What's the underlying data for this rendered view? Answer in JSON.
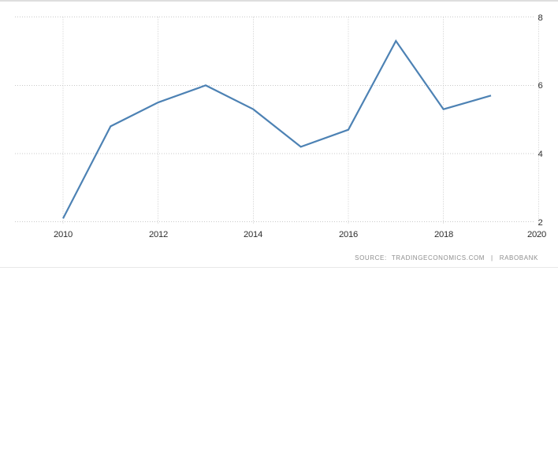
{
  "chart_data": {
    "type": "line",
    "x": [
      2010,
      2011,
      2012,
      2013,
      2014,
      2015,
      2016,
      2017,
      2018,
      2019
    ],
    "values": [
      2.1,
      4.8,
      5.5,
      6.0,
      5.3,
      4.2,
      4.7,
      7.3,
      5.3,
      5.7
    ],
    "title": "",
    "xlabel": "",
    "ylabel": "",
    "xlim": [
      2009,
      2020
    ],
    "ylim": [
      2,
      8
    ],
    "x_ticks": [
      2010,
      2012,
      2014,
      2016,
      2018,
      2020
    ],
    "x_tick_labels": [
      "2010",
      "2012",
      "2014",
      "2016",
      "2018",
      "2020"
    ],
    "y_ticks": [
      8,
      6,
      4,
      2
    ],
    "y_tick_labels": [
      "8",
      "6",
      "4",
      "2"
    ],
    "y_axis_side": "right",
    "grid": "dotted",
    "grid_color": "#c9c9c9",
    "line_color": "#4d82b4",
    "legend_position": "none"
  },
  "footer": {
    "source_label": "SOURCE:",
    "source_primary": "TRADINGECONOMICS.COM",
    "separator": "|",
    "source_secondary": "RABOBANK",
    "text_color": "#8e8e8e"
  },
  "page": {
    "background": "#ffffff",
    "top_bar_color": "#dedede",
    "divider_color": "#e8e8e8"
  }
}
